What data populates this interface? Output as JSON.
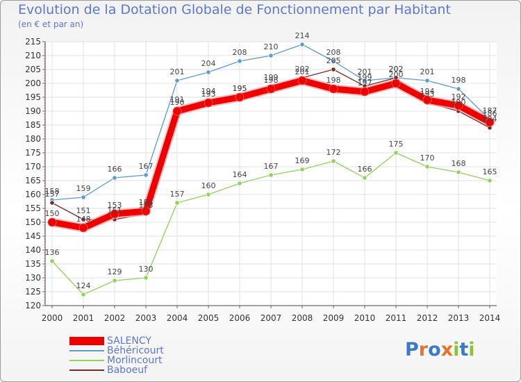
{
  "chart_data": {
    "type": "line",
    "title": "Evolution de la Dotation Globale de Fonctionnement par Habitant",
    "subtitle": "(en € et par an)",
    "xlabel": "",
    "ylabel": "",
    "categories": [
      "2000",
      "2001",
      "2002",
      "2003",
      "2004",
      "2005",
      "2006",
      "2007",
      "2008",
      "2009",
      "2010",
      "2011",
      "2012",
      "2013",
      "2014"
    ],
    "ylim": [
      120,
      215
    ],
    "yticks": [
      "120",
      "125",
      "130",
      "135",
      "140",
      "145",
      "150",
      "155",
      "160",
      "165",
      "170",
      "175",
      "180",
      "185",
      "190",
      "195",
      "200",
      "205",
      "210",
      "215"
    ],
    "grid": true,
    "legend_position": "bottom-left",
    "series": [
      {
        "name": "SALENCY",
        "color": "#ee0000",
        "values": [
          150,
          148,
          153,
          154,
          190,
          193,
          195,
          198,
          201,
          198,
          197,
          200,
          194,
          192,
          186
        ],
        "labels": [
          "150",
          "148",
          "153",
          "154",
          "190",
          "193",
          "195",
          "198",
          "201",
          "198",
          "197",
          "200",
          "194",
          "192",
          "186"
        ]
      },
      {
        "name": "Béhéricourt",
        "color": "#5b9bd5",
        "values": [
          158,
          159,
          166,
          167,
          201,
          204,
          208,
          210,
          214,
          208,
          201,
          202,
          201,
          198,
          187
        ],
        "labels": [
          "158",
          "159",
          "166",
          "167",
          "201",
          "204",
          "208",
          "210",
          "214",
          "208",
          "201",
          "202",
          "201",
          "198",
          "187"
        ]
      },
      {
        "name": "Morlincourt",
        "color": "#8ed35a",
        "values": [
          136,
          124,
          129,
          130,
          157,
          160,
          164,
          167,
          169,
          172,
          166,
          175,
          170,
          168,
          165
        ],
        "labels": [
          "136",
          "124",
          "129",
          "130",
          "157",
          "160",
          "164",
          "167",
          "169",
          "172",
          "166",
          "175",
          "170",
          "168",
          "165"
        ]
      },
      {
        "name": "Baboeuf",
        "color": "#7a2a2a",
        "values": [
          157,
          151,
          151,
          153,
          191,
          194,
          195,
          199,
          202,
          205,
          199,
          202,
          193,
          190,
          184
        ],
        "labels": [
          "157",
          "151",
          "151",
          "153",
          "191",
          "194",
          "195",
          "199",
          "202",
          "205",
          "199",
          "202",
          "193",
          "190",
          "184"
        ]
      }
    ]
  },
  "logo": {
    "text": "Proxiti",
    "letters": [
      {
        "ch": "P",
        "color": "#3a7ac8"
      },
      {
        "ch": "r",
        "color": "#e8722a"
      },
      {
        "ch": "o",
        "color": "#3a7ac8"
      },
      {
        "ch": "x",
        "color": "#e8722a"
      },
      {
        "ch": "i",
        "color": "#8fc23a"
      },
      {
        "ch": "t",
        "color": "#3a7ac8"
      },
      {
        "ch": "i",
        "color": "#8fc23a"
      }
    ]
  }
}
